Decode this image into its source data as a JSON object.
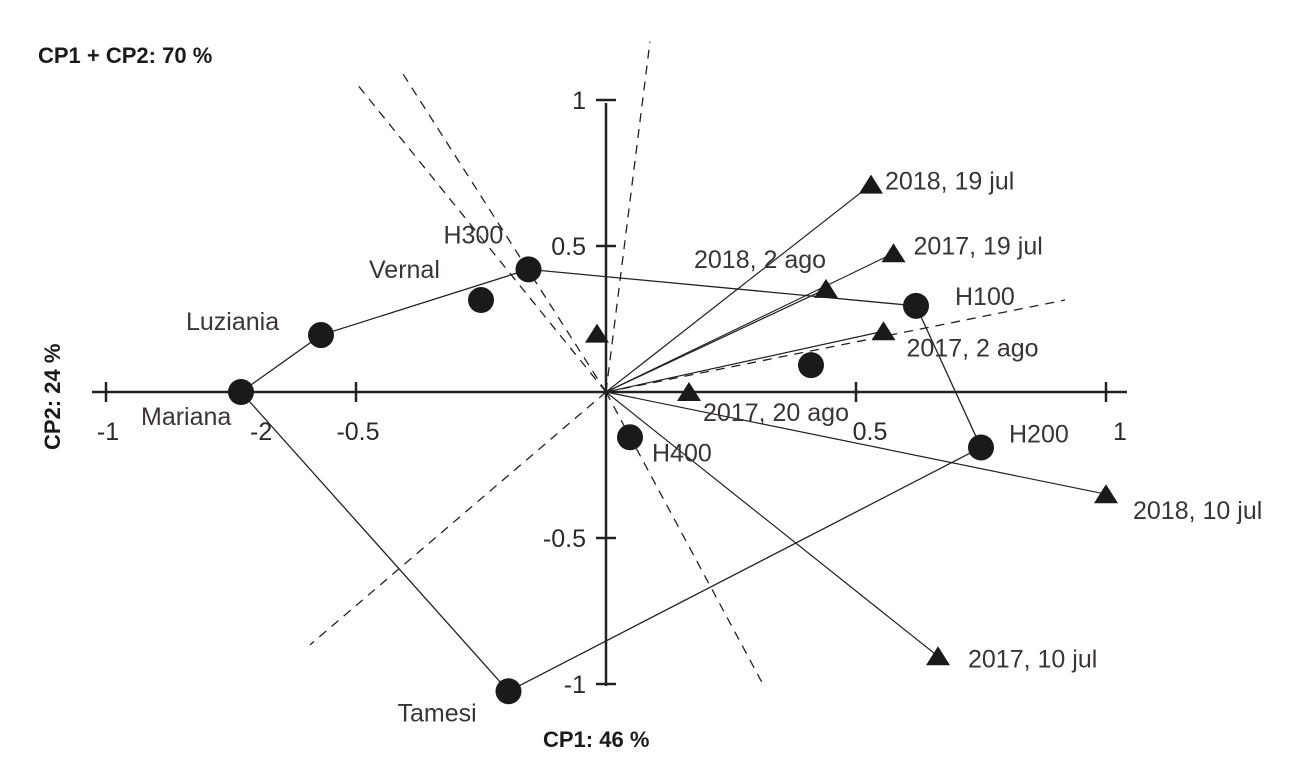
{
  "chart_data": {
    "type": "scatter",
    "title": "CP1 + CP2: 70 %",
    "xlabel": "CP1: 46 %",
    "ylabel": "CP2: 24 %",
    "xlim": [
      -1,
      1
    ],
    "ylim": [
      -1,
      1
    ],
    "grid": false,
    "x_ticks": [
      {
        "value": -1,
        "label": "-1"
      },
      {
        "value": -0.5,
        "label": "-0.5"
      },
      {
        "value": 0.5,
        "label": "0.5"
      },
      {
        "value": 1,
        "label": "1"
      }
    ],
    "y_ticks": [
      {
        "value": 1,
        "label": "1"
      },
      {
        "value": 0.5,
        "label": "0.5"
      },
      {
        "value": -0.5,
        "label": "-0.5"
      },
      {
        "value": -1,
        "label": "-1"
      }
    ],
    "stray_label": "-2",
    "genotypes": [
      {
        "name": "Mariana",
        "x": -0.73,
        "y": 0.0
      },
      {
        "name": "Luziania",
        "x": -0.57,
        "y": 0.195
      },
      {
        "name": "Vernal",
        "x": -0.25,
        "y": 0.315
      },
      {
        "name": "H300",
        "x": -0.155,
        "y": 0.42
      },
      {
        "name": "H100",
        "x": 0.62,
        "y": 0.295
      },
      {
        "name": "H200",
        "x": 0.75,
        "y": -0.19
      },
      {
        "name": "H400",
        "x": 0.048,
        "y": -0.155
      },
      {
        "name": "Tamesi",
        "x": -0.195,
        "y": -1.025
      },
      {
        "name": "",
        "x": 0.41,
        "y": 0.092
      }
    ],
    "environments": [
      {
        "name": "2018, 19 jul",
        "x": 0.53,
        "y": 0.71
      },
      {
        "name": "2017, 19 jul",
        "x": 0.575,
        "y": 0.475
      },
      {
        "name": "2018, 2 ago",
        "x": 0.44,
        "y": 0.353
      },
      {
        "name": "2017, 2 ago",
        "x": 0.555,
        "y": 0.208
      },
      {
        "name": "2017, 20 ago",
        "x": 0.166,
        "y": 0.0
      },
      {
        "name": "2018, 10 jul",
        "x": 1.0,
        "y": -0.35
      },
      {
        "name": "2017, 10 jul",
        "x": 0.664,
        "y": -0.905
      },
      {
        "name": "",
        "x": -0.018,
        "y": 0.2
      }
    ],
    "polygon_order": [
      "Mariana",
      "Luziania",
      "H300",
      "H100",
      "H200",
      "Tamesi"
    ],
    "dashed_rays": [
      {
        "x": 0.088,
        "y": 1.2
      },
      {
        "x": -0.496,
        "y": 1.05
      },
      {
        "x": -0.41,
        "y": 1.1
      },
      {
        "x": 0.318,
        "y": -1.014
      },
      {
        "x": -0.592,
        "y": -0.866
      },
      {
        "x": 0.918,
        "y": 0.315
      }
    ],
    "marker_color": "#1a1a1a"
  }
}
